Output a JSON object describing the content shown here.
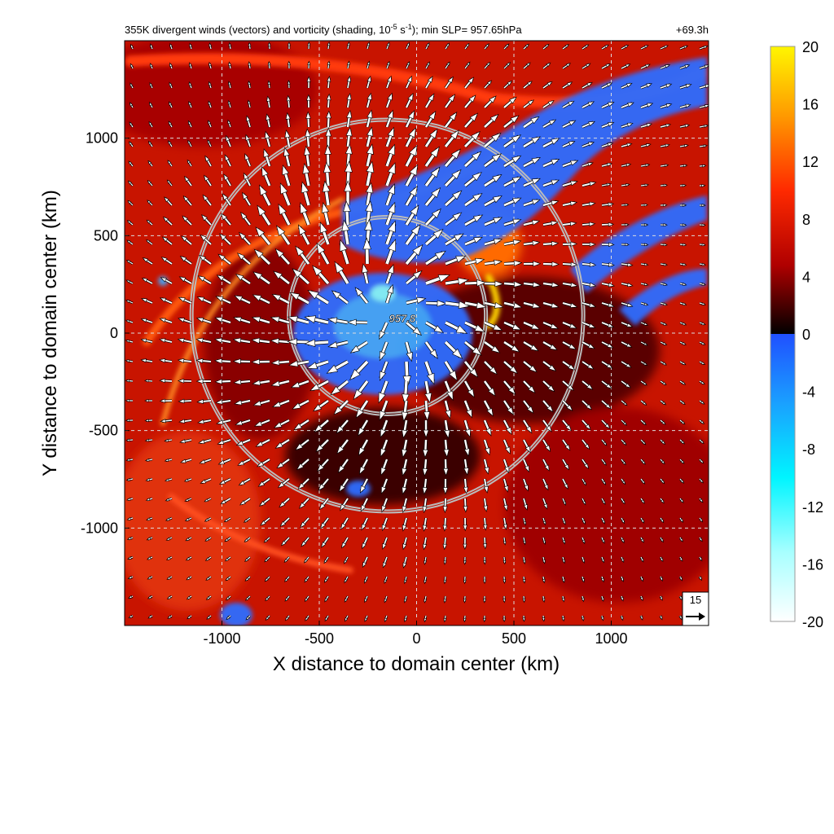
{
  "chart_data": {
    "type": "heatmap",
    "title": "355K divergent winds (vectors) and vorticity (shading, 10",
    "title_exp1": "-5",
    "title_mid": " s",
    "title_exp2": "-1",
    "title_end": "); min SLP= 957.65hPa",
    "forecast_time": "+69.3h",
    "xlabel": "X distance to domain center (km)",
    "ylabel": "Y distance to domain center (km)",
    "xlim": [
      -1500,
      1500
    ],
    "ylim": [
      -1500,
      1500
    ],
    "x_ticks": [
      -1000,
      -500,
      0,
      500,
      1000
    ],
    "y_ticks": [
      -1000,
      -500,
      0,
      500,
      1000
    ],
    "colorbar": {
      "ticks": [
        20,
        16,
        12,
        8,
        4,
        0,
        -4,
        -8,
        -12,
        -16,
        -20
      ],
      "range": [
        -20,
        20
      ]
    },
    "center_label": "957.8",
    "center_position_km": [
      -150,
      90
    ],
    "range_rings_km": [
      500,
      1000
    ],
    "vector_reference": {
      "value": "15"
    },
    "colors": {
      "positive_high": "#ffee00",
      "positive_mid": "#ff2200",
      "positive_low": "#7a0000",
      "zero": "#000000",
      "negative_low": "#2255ff",
      "negative_mid": "#00ffff",
      "negative_high": "#ffffff"
    }
  }
}
